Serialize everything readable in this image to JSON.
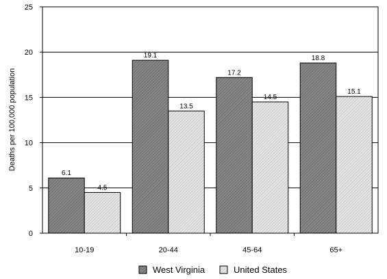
{
  "chart_data": {
    "type": "bar",
    "categories": [
      "10-19",
      "20-44",
      "45-64",
      "65+"
    ],
    "series": [
      {
        "name": "West Virginia",
        "values": [
          6.1,
          19.1,
          17.2,
          18.8
        ],
        "labels": [
          "6.1",
          "19.1",
          "17.2",
          "18.8"
        ],
        "color": "#7a7a7a"
      },
      {
        "name": "United States",
        "values": [
          4.5,
          13.5,
          14.5,
          15.1
        ],
        "labels": [
          "4.5",
          "13.5",
          "14.5",
          "15.1"
        ],
        "color": "#d9d9d9"
      }
    ],
    "title": "",
    "xlabel": "",
    "ylabel": "Deaths per 100,000 population",
    "ylim": [
      0,
      25
    ],
    "yticks": [
      0,
      5,
      10,
      15,
      20,
      25
    ],
    "grid": true,
    "legend_position": "bottom"
  }
}
